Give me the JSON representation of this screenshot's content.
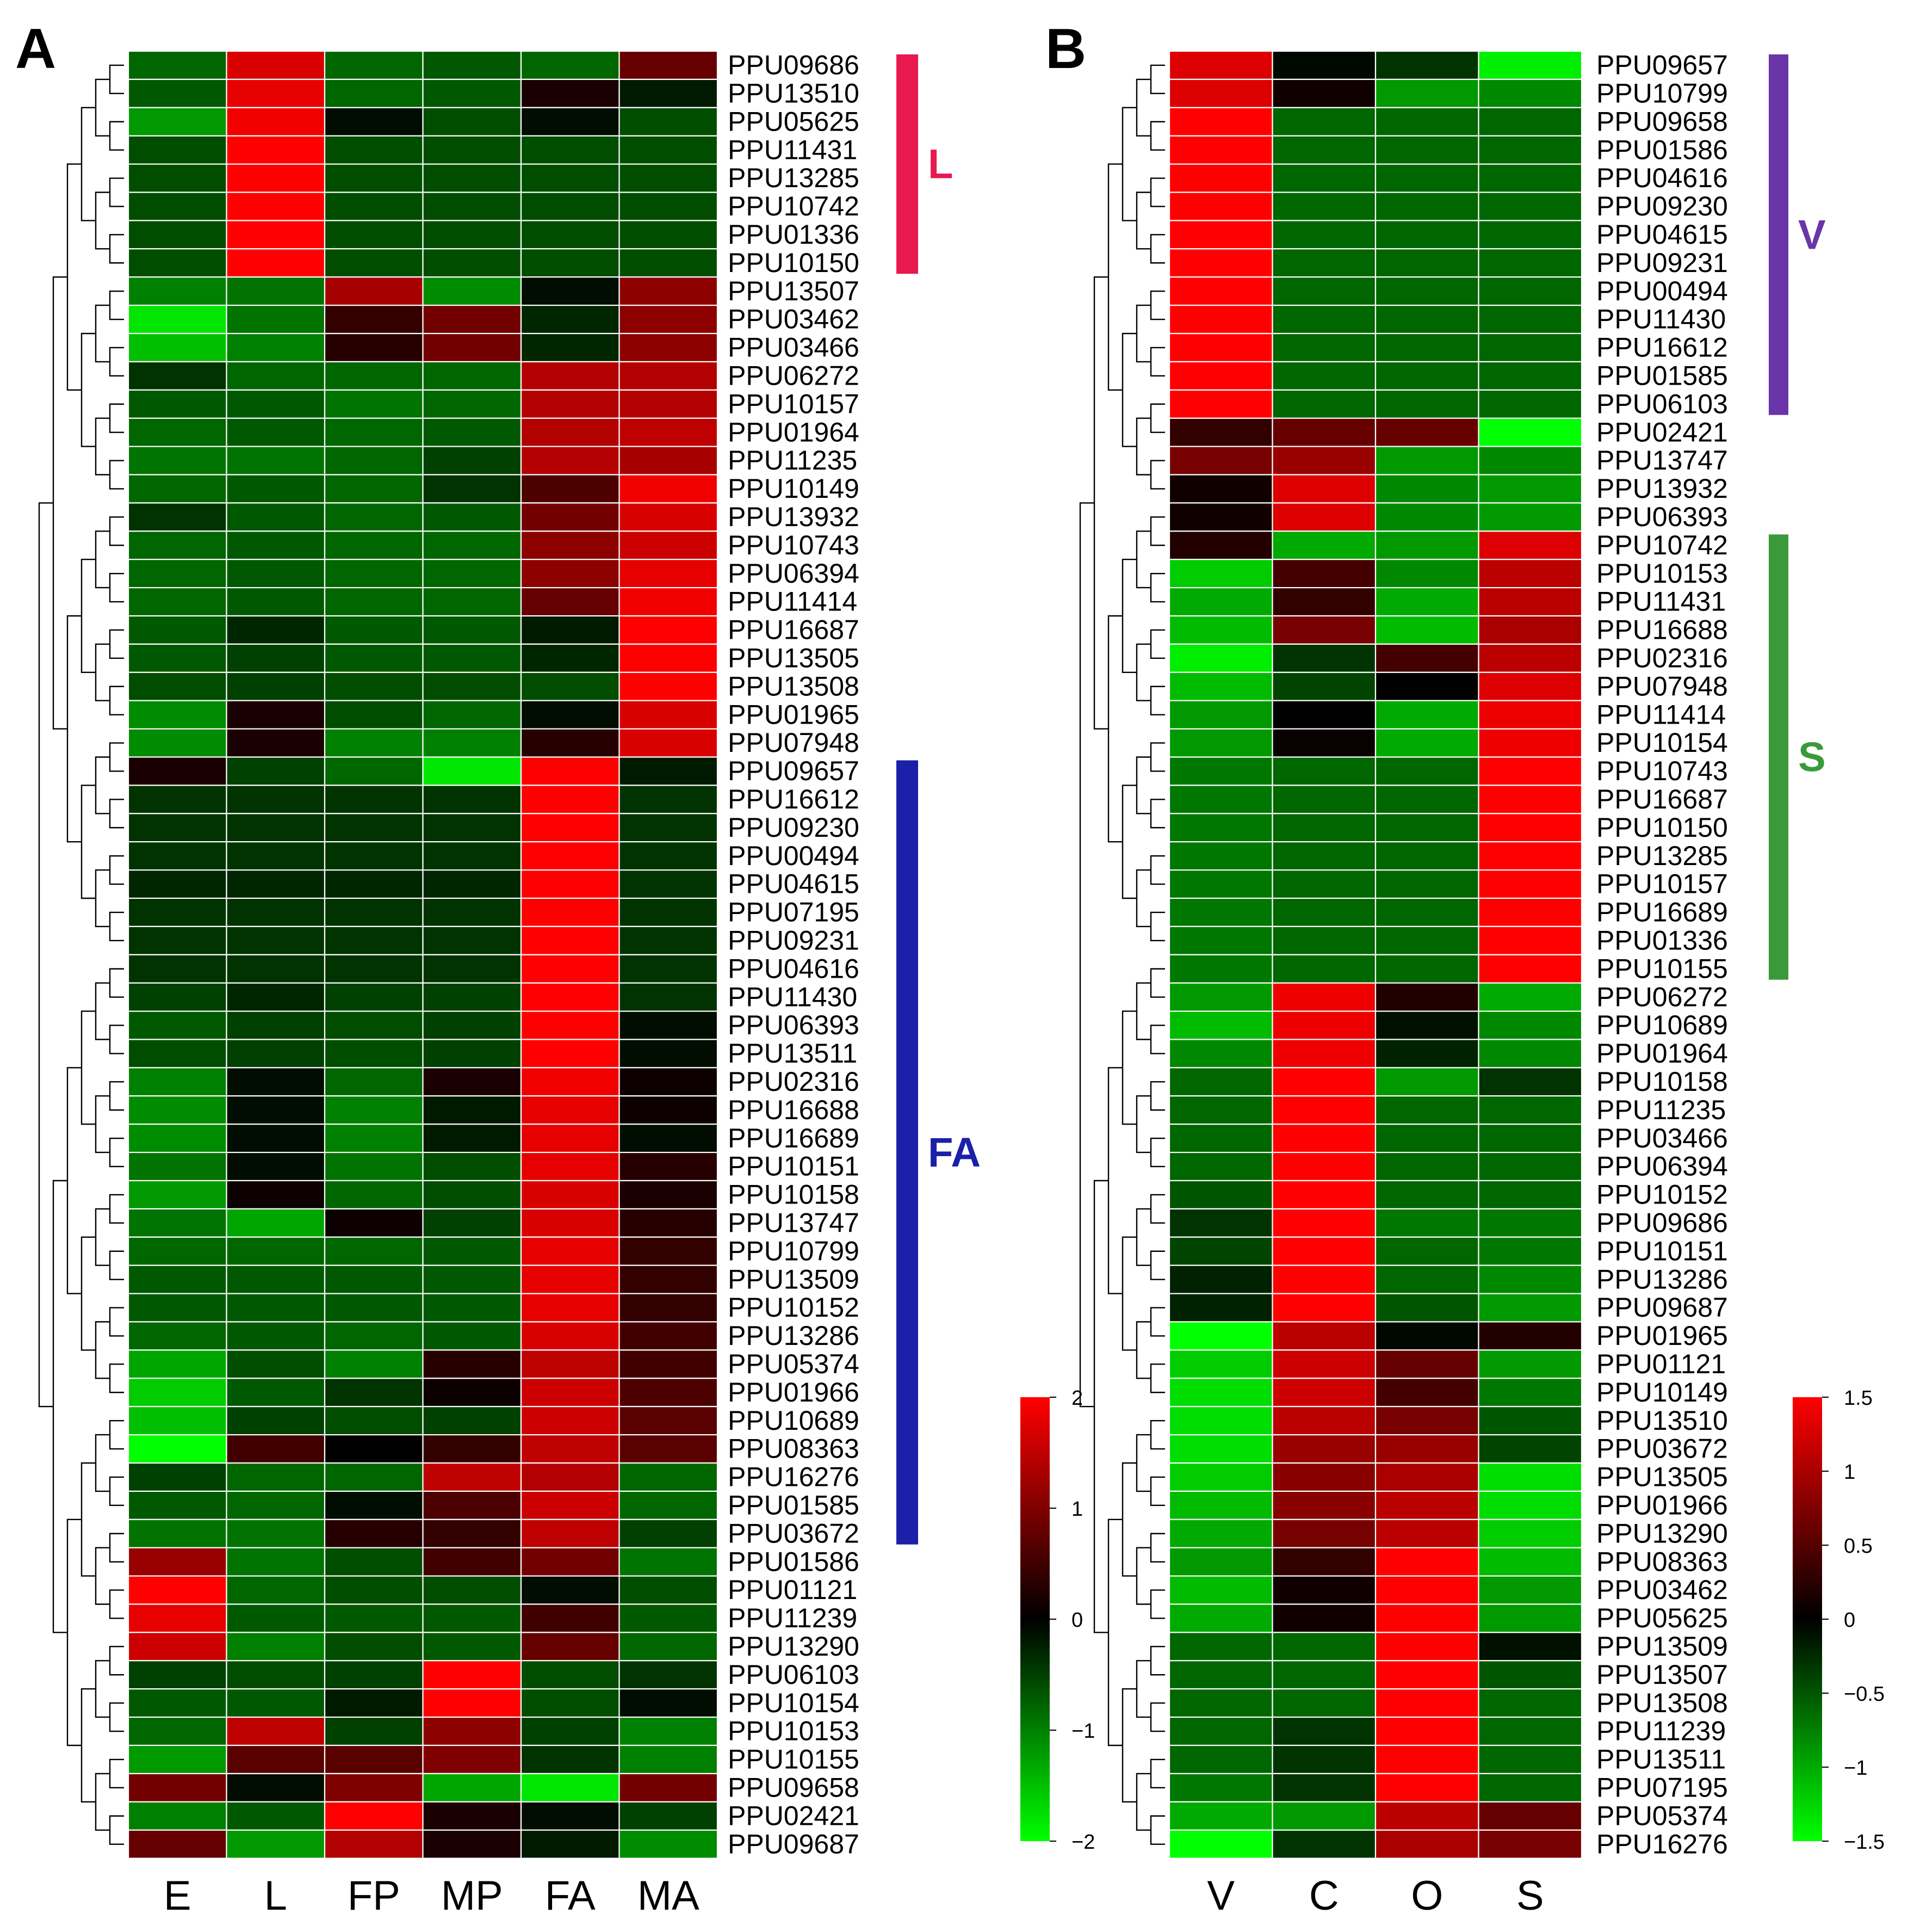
{
  "chart_data": [
    {
      "type": "heatmap",
      "panel_label": "A",
      "columns": [
        "E",
        "L",
        "FP",
        "MP",
        "FA",
        "MA"
      ],
      "rows": [
        "PPU09686",
        "PPU13510",
        "PPU05625",
        "PPU11431",
        "PPU13285",
        "PPU10742",
        "PPU01336",
        "PPU10150",
        "PPU13507",
        "PPU03462",
        "PPU03466",
        "PPU06272",
        "PPU10157",
        "PPU01964",
        "PPU11235",
        "PPU10149",
        "PPU13932",
        "PPU10743",
        "PPU06394",
        "PPU11414",
        "PPU16687",
        "PPU13505",
        "PPU13508",
        "PPU01965",
        "PPU07948",
        "PPU09657",
        "PPU16612",
        "PPU09230",
        "PPU00494",
        "PPU04615",
        "PPU07195",
        "PPU09231",
        "PPU04616",
        "PPU11430",
        "PPU06393",
        "PPU13511",
        "PPU02316",
        "PPU16688",
        "PPU16689",
        "PPU10151",
        "PPU10158",
        "PPU13747",
        "PPU10799",
        "PPU13509",
        "PPU10152",
        "PPU13286",
        "PPU05374",
        "PPU01966",
        "PPU10689",
        "PPU08363",
        "PPU16276",
        "PPU01585",
        "PPU03672",
        "PPU01586",
        "PPU01121",
        "PPU11239",
        "PPU13290",
        "PPU06103",
        "PPU10154",
        "PPU10153",
        "PPU10155",
        "PPU09658",
        "PPU02421",
        "PPU09687"
      ],
      "values": [
        [
          -0.8,
          1.7,
          -0.8,
          -0.7,
          -0.8,
          0.8
        ],
        [
          -0.7,
          1.8,
          -0.8,
          -0.7,
          0.2,
          -0.2
        ],
        [
          -1.2,
          1.9,
          -0.1,
          -0.6,
          -0.1,
          -0.6
        ],
        [
          -0.6,
          2.0,
          -0.6,
          -0.6,
          -0.6,
          -0.6
        ],
        [
          -0.6,
          2.0,
          -0.6,
          -0.6,
          -0.6,
          -0.6
        ],
        [
          -0.6,
          2.0,
          -0.6,
          -0.6,
          -0.6,
          -0.6
        ],
        [
          -0.6,
          2.0,
          -0.6,
          -0.6,
          -0.6,
          -0.6
        ],
        [
          -0.6,
          2.0,
          -0.6,
          -0.6,
          -0.6,
          -0.6
        ],
        [
          -1.0,
          -0.9,
          1.3,
          -1.1,
          -0.1,
          1.1
        ],
        [
          -1.8,
          -0.9,
          0.4,
          0.9,
          -0.3,
          1.1
        ],
        [
          -1.5,
          -1.0,
          0.3,
          0.9,
          -0.3,
          1.1
        ],
        [
          -0.4,
          -0.8,
          -0.8,
          -0.8,
          1.4,
          1.4
        ],
        [
          -0.7,
          -0.7,
          -0.9,
          -0.8,
          1.4,
          1.4
        ],
        [
          -0.8,
          -0.7,
          -0.8,
          -0.7,
          1.4,
          1.5
        ],
        [
          -0.9,
          -0.9,
          -0.8,
          -0.5,
          1.4,
          1.3
        ],
        [
          -0.8,
          -0.7,
          -0.8,
          -0.4,
          0.6,
          1.9
        ],
        [
          -0.4,
          -0.7,
          -0.8,
          -0.7,
          0.9,
          1.7
        ],
        [
          -0.8,
          -0.7,
          -0.8,
          -0.8,
          1.1,
          1.6
        ],
        [
          -0.8,
          -0.7,
          -0.8,
          -0.8,
          1.1,
          1.8
        ],
        [
          -0.8,
          -0.7,
          -0.8,
          -0.8,
          0.8,
          1.9
        ],
        [
          -0.7,
          -0.3,
          -0.7,
          -0.7,
          -0.2,
          2.0
        ],
        [
          -0.7,
          -0.5,
          -0.7,
          -0.7,
          -0.3,
          2.0
        ],
        [
          -0.6,
          -0.5,
          -0.6,
          -0.6,
          -0.6,
          2.0
        ],
        [
          -1.1,
          0.2,
          -0.6,
          -0.8,
          -0.1,
          1.7
        ],
        [
          -1.1,
          0.2,
          -1.0,
          -1.0,
          0.3,
          1.7
        ],
        [
          0.2,
          -0.5,
          -0.8,
          -1.8,
          2.0,
          -0.2
        ],
        [
          -0.4,
          -0.4,
          -0.4,
          -0.4,
          2.0,
          -0.4
        ],
        [
          -0.4,
          -0.4,
          -0.4,
          -0.4,
          2.0,
          -0.4
        ],
        [
          -0.4,
          -0.4,
          -0.4,
          -0.4,
          2.0,
          -0.4
        ],
        [
          -0.3,
          -0.3,
          -0.3,
          -0.3,
          2.0,
          -0.4
        ],
        [
          -0.4,
          -0.4,
          -0.4,
          -0.4,
          2.0,
          -0.4
        ],
        [
          -0.4,
          -0.4,
          -0.4,
          -0.4,
          2.0,
          -0.4
        ],
        [
          -0.4,
          -0.4,
          -0.4,
          -0.4,
          2.0,
          -0.4
        ],
        [
          -0.5,
          -0.3,
          -0.5,
          -0.5,
          2.0,
          -0.4
        ],
        [
          -0.7,
          -0.5,
          -0.6,
          -0.5,
          2.0,
          -0.1
        ],
        [
          -0.6,
          -0.5,
          -0.6,
          -0.5,
          2.0,
          -0.1
        ],
        [
          -1.0,
          -0.1,
          -0.8,
          0.2,
          1.9,
          0.1
        ],
        [
          -1.1,
          -0.1,
          -1.0,
          -0.2,
          1.8,
          0.1
        ],
        [
          -1.1,
          -0.1,
          -1.0,
          -0.2,
          1.8,
          -0.1
        ],
        [
          -0.9,
          -0.1,
          -0.9,
          -0.6,
          1.8,
          0.3
        ],
        [
          -1.2,
          0.1,
          -0.8,
          -0.6,
          1.7,
          0.2
        ],
        [
          -0.9,
          -1.3,
          0.1,
          -0.5,
          1.7,
          0.3
        ],
        [
          -0.8,
          -0.8,
          -0.8,
          -0.7,
          1.8,
          0.4
        ],
        [
          -0.7,
          -0.7,
          -0.7,
          -0.7,
          1.8,
          0.4
        ],
        [
          -0.7,
          -0.7,
          -0.7,
          -0.7,
          1.8,
          0.4
        ],
        [
          -0.8,
          -0.7,
          -0.8,
          -0.7,
          1.7,
          0.5
        ],
        [
          -1.3,
          -0.6,
          -1.0,
          0.3,
          1.5,
          0.5
        ],
        [
          -1.6,
          -0.7,
          -0.4,
          0.1,
          1.6,
          0.6
        ],
        [
          -1.5,
          -0.5,
          -0.6,
          -0.5,
          1.6,
          0.7
        ],
        [
          -2.0,
          0.5,
          0.0,
          0.4,
          1.5,
          0.7
        ],
        [
          -0.5,
          -0.8,
          -0.8,
          1.5,
          1.4,
          -0.8
        ],
        [
          -0.7,
          -0.8,
          -0.1,
          0.6,
          1.6,
          -0.8
        ],
        [
          -0.9,
          -0.9,
          0.3,
          0.4,
          1.5,
          -0.5
        ],
        [
          1.2,
          -0.9,
          -0.6,
          0.5,
          0.9,
          -0.9
        ],
        [
          2.0,
          -0.8,
          -0.6,
          -0.6,
          -0.1,
          -0.6
        ],
        [
          1.8,
          -0.7,
          -0.7,
          -0.7,
          0.5,
          -0.7
        ],
        [
          1.6,
          -1.0,
          -0.6,
          -0.7,
          0.8,
          -0.8
        ],
        [
          -0.5,
          -0.6,
          -0.5,
          2.0,
          -0.6,
          -0.4
        ],
        [
          -0.7,
          -0.7,
          -0.2,
          2.0,
          -0.6,
          -0.1
        ],
        [
          -0.8,
          1.5,
          -0.5,
          1.1,
          -0.5,
          -1.0
        ],
        [
          -1.2,
          0.7,
          0.7,
          1.0,
          -0.4,
          -1.0
        ],
        [
          0.9,
          -0.1,
          1.0,
          -1.3,
          -1.8,
          0.9
        ],
        [
          -1.0,
          -0.7,
          2.0,
          0.2,
          -0.1,
          -0.5
        ],
        [
          0.8,
          -1.2,
          1.4,
          0.2,
          -0.2,
          -1.1
        ]
      ],
      "legend": {
        "ticks": [
          "2",
          "1",
          "0",
          "−1",
          "−2"
        ],
        "min": -2,
        "max": 2
      },
      "clusters": [
        {
          "label": "L",
          "color": "#e8194f",
          "start": 0,
          "end": 7
        },
        {
          "label": "FA",
          "color": "#1a20a8",
          "start": 25,
          "end": 52
        }
      ]
    },
    {
      "type": "heatmap",
      "panel_label": "B",
      "columns": [
        "V",
        "C",
        "O",
        "S"
      ],
      "rows": [
        "PPU09657",
        "PPU10799",
        "PPU09658",
        "PPU01586",
        "PPU04616",
        "PPU09230",
        "PPU04615",
        "PPU09231",
        "PPU00494",
        "PPU11430",
        "PPU16612",
        "PPU01585",
        "PPU06103",
        "PPU02421",
        "PPU13747",
        "PPU13932",
        "PPU06393",
        "PPU10742",
        "PPU10153",
        "PPU11431",
        "PPU16688",
        "PPU02316",
        "PPU07948",
        "PPU11414",
        "PPU10154",
        "PPU10743",
        "PPU16687",
        "PPU10150",
        "PPU13285",
        "PPU10157",
        "PPU16689",
        "PPU01336",
        "PPU10155",
        "PPU06272",
        "PPU10689",
        "PPU01964",
        "PPU10158",
        "PPU11235",
        "PPU03466",
        "PPU06394",
        "PPU10152",
        "PPU09686",
        "PPU10151",
        "PPU13286",
        "PPU09687",
        "PPU01965",
        "PPU01121",
        "PPU10149",
        "PPU13510",
        "PPU03672",
        "PPU13505",
        "PPU01966",
        "PPU13290",
        "PPU08363",
        "PPU03462",
        "PPU05625",
        "PPU13509",
        "PPU13507",
        "PPU13508",
        "PPU11239",
        "PPU13511",
        "PPU07195",
        "PPU05374",
        "PPU16276"
      ],
      "values": [
        [
          1.3,
          -0.05,
          -0.3,
          -1.4
        ],
        [
          1.3,
          0.1,
          -0.9,
          -0.8
        ],
        [
          1.5,
          -0.6,
          -0.6,
          -0.6
        ],
        [
          1.5,
          -0.6,
          -0.6,
          -0.6
        ],
        [
          1.5,
          -0.6,
          -0.6,
          -0.6
        ],
        [
          1.5,
          -0.6,
          -0.6,
          -0.6
        ],
        [
          1.5,
          -0.6,
          -0.6,
          -0.6
        ],
        [
          1.5,
          -0.6,
          -0.6,
          -0.6
        ],
        [
          1.5,
          -0.6,
          -0.6,
          -0.6
        ],
        [
          1.5,
          -0.6,
          -0.6,
          -0.6
        ],
        [
          1.5,
          -0.6,
          -0.6,
          -0.6
        ],
        [
          1.5,
          -0.6,
          -0.6,
          -0.6
        ],
        [
          1.5,
          -0.6,
          -0.6,
          -0.6
        ],
        [
          0.3,
          0.6,
          0.6,
          -1.5
        ],
        [
          0.7,
          0.9,
          -0.9,
          -0.8
        ],
        [
          0.1,
          1.3,
          -0.8,
          -0.9
        ],
        [
          0.1,
          1.3,
          -0.8,
          -0.9
        ],
        [
          0.2,
          -1.0,
          -0.9,
          1.3
        ],
        [
          -1.2,
          0.4,
          -0.8,
          1.1
        ],
        [
          -1.0,
          0.3,
          -1.0,
          1.1
        ],
        [
          -1.1,
          0.7,
          -1.1,
          1.0
        ],
        [
          -1.4,
          -0.3,
          0.4,
          1.1
        ],
        [
          -1.1,
          -0.4,
          0.0,
          1.3
        ],
        [
          -0.9,
          0.0,
          -1.0,
          1.4
        ],
        [
          -0.9,
          0.05,
          -1.0,
          1.4
        ],
        [
          -0.7,
          -0.6,
          -0.6,
          1.5
        ],
        [
          -0.7,
          -0.6,
          -0.6,
          1.5
        ],
        [
          -0.7,
          -0.6,
          -0.6,
          1.5
        ],
        [
          -0.7,
          -0.6,
          -0.6,
          1.5
        ],
        [
          -0.7,
          -0.6,
          -0.6,
          1.5
        ],
        [
          -0.7,
          -0.6,
          -0.6,
          1.5
        ],
        [
          -0.7,
          -0.6,
          -0.6,
          1.5
        ],
        [
          -0.7,
          -0.6,
          -0.6,
          1.5
        ],
        [
          -0.9,
          1.4,
          0.2,
          -1.0
        ],
        [
          -1.1,
          1.4,
          -0.1,
          -0.8
        ],
        [
          -0.8,
          1.4,
          -0.2,
          -0.8
        ],
        [
          -0.6,
          1.5,
          -0.9,
          -0.3
        ],
        [
          -0.6,
          1.5,
          -0.6,
          -0.6
        ],
        [
          -0.6,
          1.5,
          -0.6,
          -0.6
        ],
        [
          -0.6,
          1.5,
          -0.6,
          -0.6
        ],
        [
          -0.5,
          1.5,
          -0.6,
          -0.6
        ],
        [
          -0.3,
          1.5,
          -0.7,
          -0.7
        ],
        [
          -0.4,
          1.5,
          -0.6,
          -0.7
        ],
        [
          -0.2,
          1.5,
          -0.6,
          -0.8
        ],
        [
          -0.2,
          1.5,
          -0.5,
          -0.9
        ],
        [
          -1.5,
          1.1,
          -0.05,
          0.2
        ],
        [
          -1.2,
          1.2,
          0.6,
          -0.9
        ],
        [
          -1.3,
          1.2,
          0.4,
          -0.7
        ],
        [
          -1.3,
          1.1,
          0.7,
          -0.5
        ],
        [
          -1.3,
          0.9,
          0.9,
          -0.4
        ],
        [
          -1.2,
          0.8,
          1.0,
          -1.3
        ],
        [
          -1.1,
          0.8,
          1.1,
          -1.3
        ],
        [
          -1.0,
          0.7,
          1.1,
          -1.2
        ],
        [
          -0.9,
          0.3,
          1.5,
          -1.1
        ],
        [
          -1.1,
          0.1,
          1.5,
          -0.9
        ],
        [
          -1.0,
          0.1,
          1.5,
          -0.9
        ],
        [
          -0.6,
          -0.6,
          1.5,
          -0.1
        ],
        [
          -0.6,
          -0.6,
          1.5,
          -0.5
        ],
        [
          -0.6,
          -0.6,
          1.5,
          -0.6
        ],
        [
          -0.6,
          -0.3,
          1.5,
          -0.6
        ],
        [
          -0.6,
          -0.3,
          1.5,
          -0.6
        ],
        [
          -0.7,
          -0.3,
          1.5,
          -0.6
        ],
        [
          -1.0,
          -0.9,
          1.1,
          0.6
        ],
        [
          -1.6,
          -0.3,
          1.0,
          0.7
        ]
      ],
      "legend": {
        "ticks": [
          "1.5",
          "1",
          "0.5",
          "0",
          "−0.5",
          "−1",
          "−1.5"
        ],
        "min": -1.5,
        "max": 1.5
      },
      "clusters": [
        {
          "label": "V",
          "color": "#6a35a8",
          "start": 0,
          "end": 12
        },
        {
          "label": "S",
          "color": "#3a9a3a",
          "start": 17,
          "end": 32
        }
      ]
    }
  ]
}
